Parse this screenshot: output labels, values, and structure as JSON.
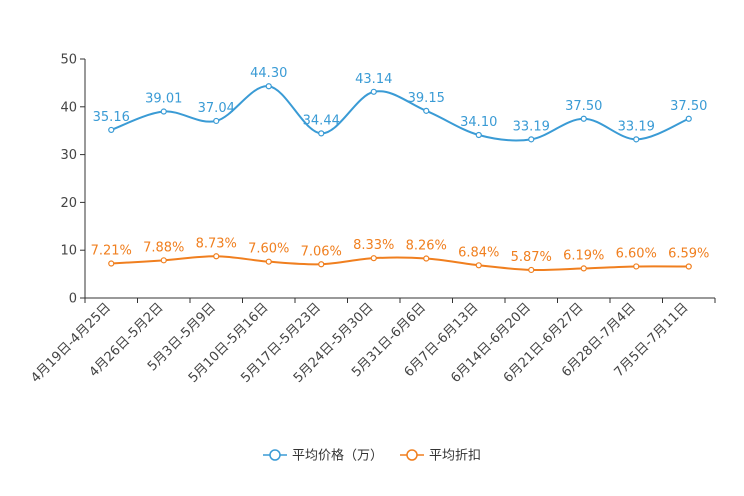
{
  "chart_data": {
    "type": "line",
    "categories": [
      "4月19日-4月25日",
      "4月26日-5月2日",
      "5月3日-5月9日",
      "5月10日-5月16日",
      "5月17日-5月23日",
      "5月24日-5月30日",
      "5月31日-6月6日",
      "6月7日-6月13日",
      "6月14日-6月20日",
      "6月21日-6月27日",
      "6月28日-7月4日",
      "7月5日-7月11日"
    ],
    "series": [
      {
        "name": "平均价格（万）",
        "color": "#3a9bd5",
        "values": [
          35.16,
          39.01,
          37.04,
          44.3,
          34.44,
          43.14,
          39.15,
          34.1,
          33.19,
          37.5,
          33.19,
          37.5
        ],
        "labels": [
          "35.16",
          "39.01",
          "37.04",
          "44.30",
          "34.44",
          "43.14",
          "39.15",
          "34.10",
          "33.19",
          "37.50",
          "33.19",
          "37.50"
        ]
      },
      {
        "name": "平均折扣",
        "color": "#f07f1f",
        "values": [
          7.21,
          7.88,
          8.73,
          7.6,
          7.06,
          8.33,
          8.26,
          6.84,
          5.87,
          6.19,
          6.6,
          6.59
        ],
        "labels": [
          "7.21%",
          "7.88%",
          "8.73%",
          "7.60%",
          "7.06%",
          "8.33%",
          "8.26%",
          "6.84%",
          "5.87%",
          "6.19%",
          "6.60%",
          "6.59%"
        ]
      }
    ],
    "yticks": [
      0,
      10,
      20,
      30,
      40,
      50
    ],
    "ylim": [
      0,
      50
    ],
    "grid": false,
    "legend_position": "bottom-center",
    "title": "",
    "xlabel": "",
    "ylabel": ""
  }
}
